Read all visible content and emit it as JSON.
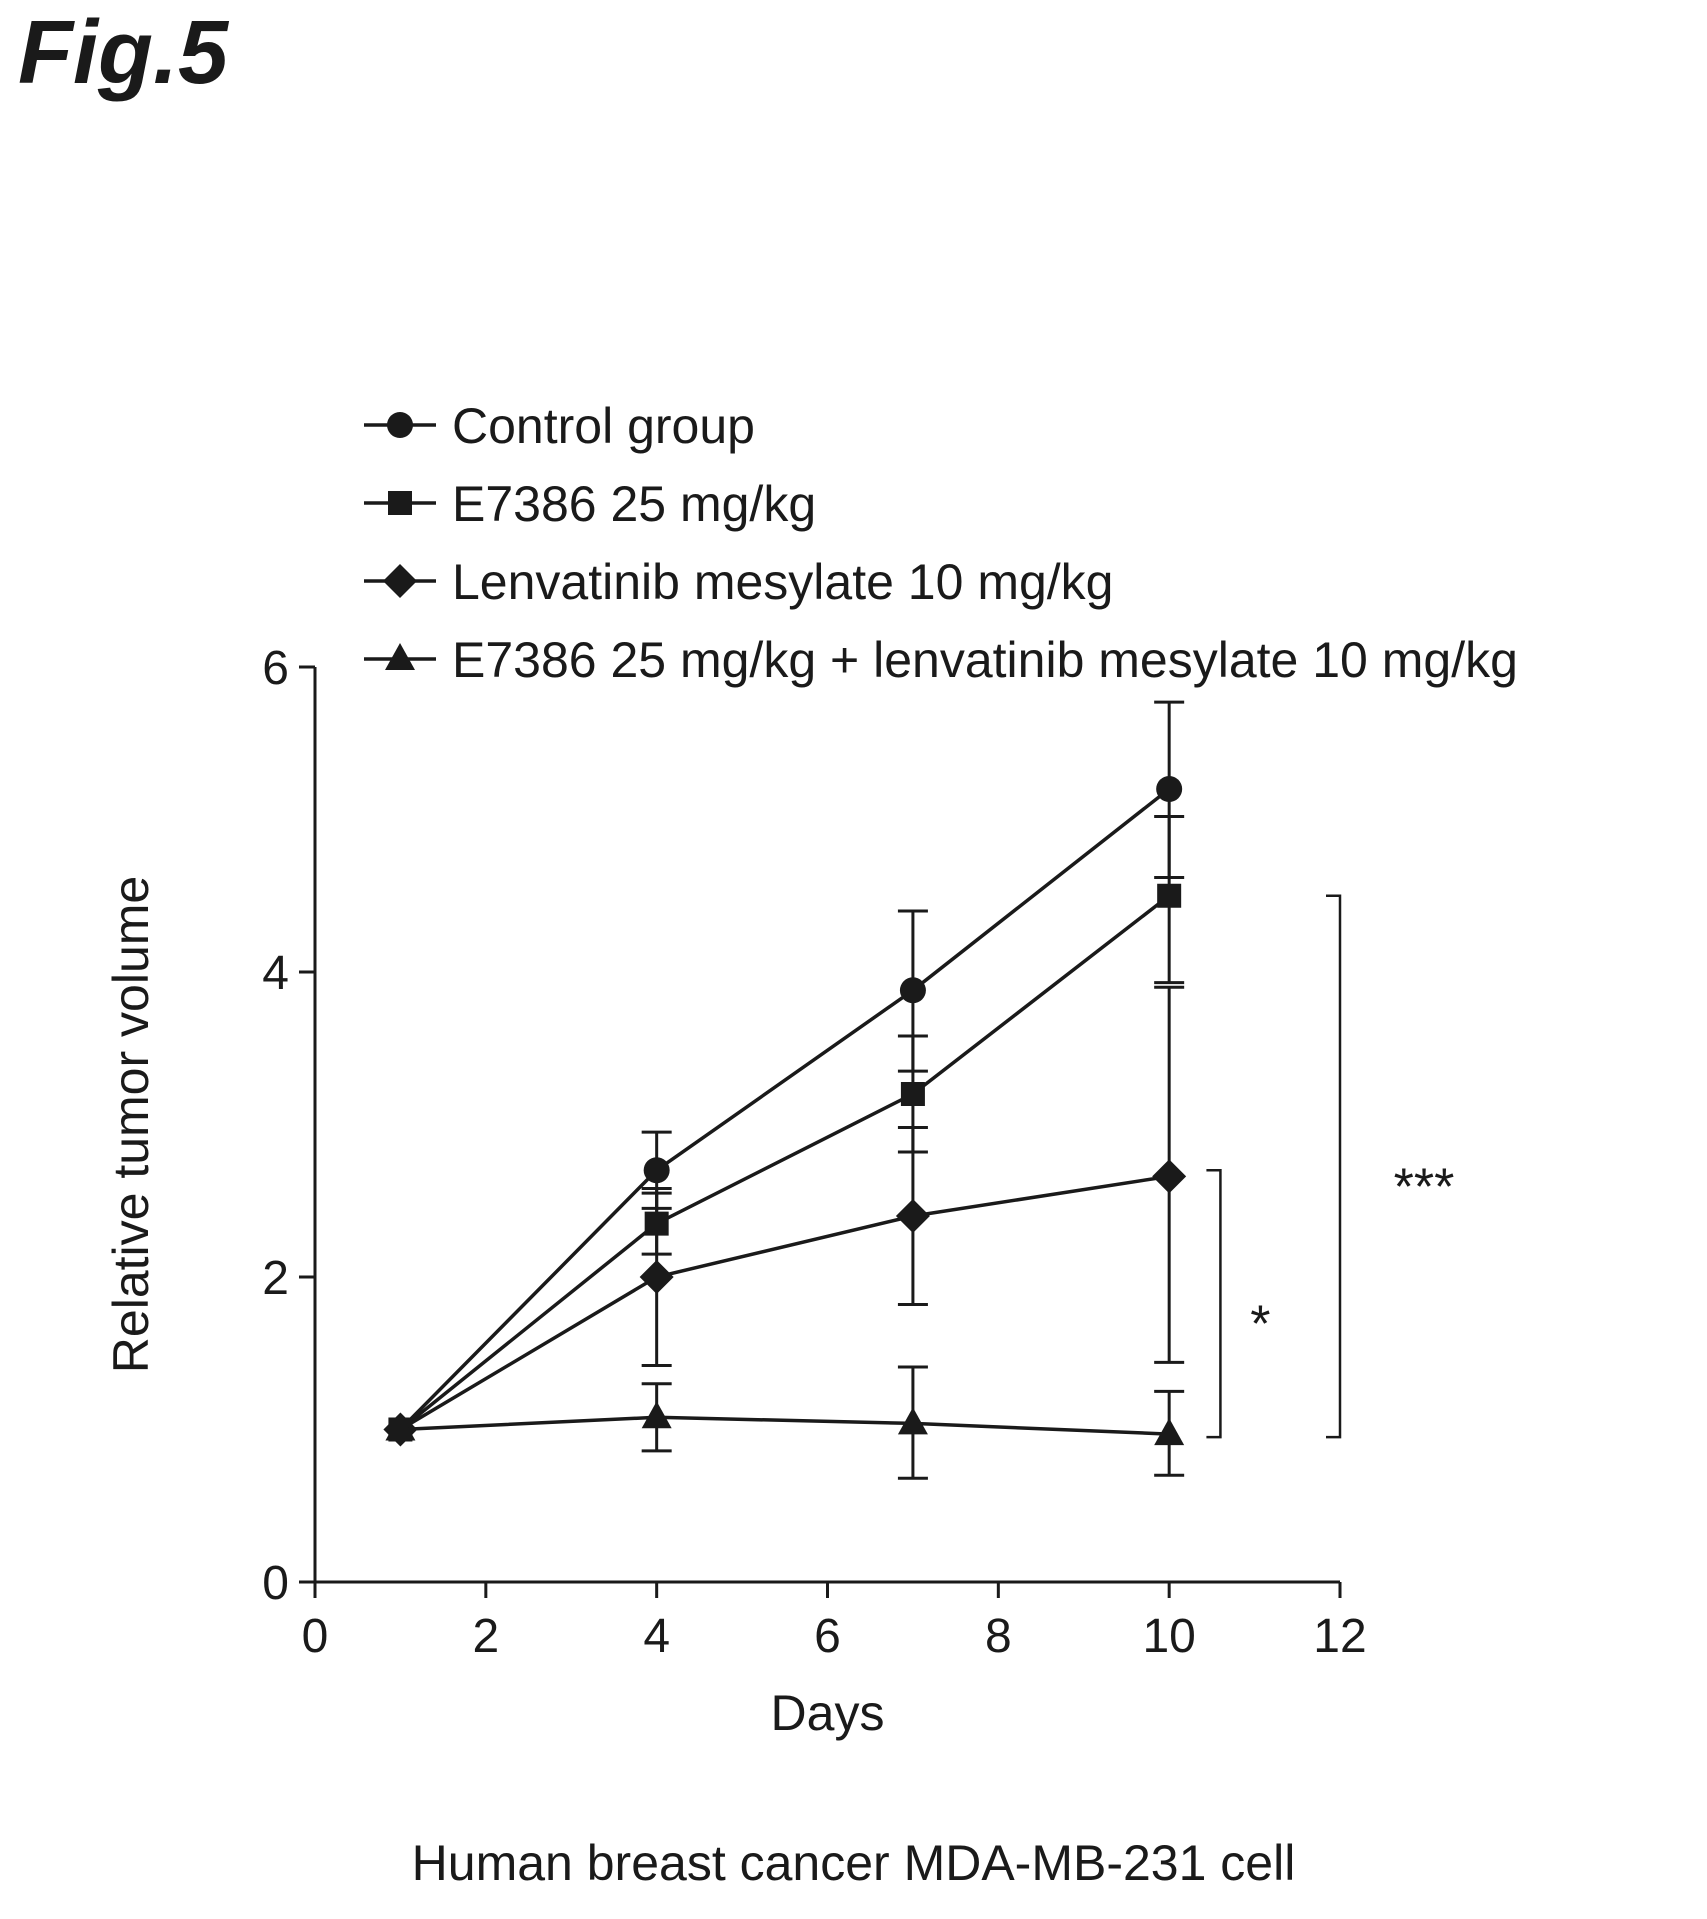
{
  "figure_label": "Fig.5",
  "caption": "Human breast cancer MDA-MB-231 cell",
  "colors": {
    "ink": "#1a1a1a",
    "background": "#ffffff"
  },
  "chart_data": {
    "type": "line",
    "title": "",
    "xlabel": "Days",
    "ylabel": "Relative tumor volume",
    "xlim": [
      0,
      12
    ],
    "ylim": [
      0,
      6
    ],
    "xticks": [
      0,
      2,
      4,
      6,
      8,
      10,
      12
    ],
    "yticks": [
      0,
      2,
      4,
      6
    ],
    "grid": false,
    "legend_position": "top",
    "x": [
      1,
      4,
      7,
      10
    ],
    "series": [
      {
        "name": "Control group",
        "marker": "circle",
        "values": [
          1.0,
          2.7,
          3.88,
          5.2
        ],
        "error_low": [
          1.0,
          2.45,
          3.35,
          4.62
        ],
        "error_high": [
          1.0,
          2.95,
          4.4,
          5.77
        ]
      },
      {
        "name": "E7386 25 mg/kg",
        "marker": "square",
        "values": [
          1.0,
          2.35,
          3.2,
          4.5
        ],
        "error_low": [
          1.0,
          2.15,
          2.82,
          3.93
        ],
        "error_high": [
          1.0,
          2.55,
          3.58,
          5.02
        ]
      },
      {
        "name": "Lenvatinib mesylate 10 mg/kg",
        "marker": "diamond",
        "values": [
          1.0,
          2.0,
          2.4,
          2.66
        ],
        "error_low": [
          1.0,
          1.42,
          1.82,
          1.44
        ],
        "error_high": [
          1.0,
          2.58,
          2.98,
          3.9
        ]
      },
      {
        "name": "E7386 25 mg/kg + lenvatinib mesylate 10 mg/kg",
        "marker": "triangle",
        "values": [
          1.0,
          1.08,
          1.04,
          0.97
        ],
        "error_low": [
          1.0,
          0.86,
          0.68,
          0.7
        ],
        "error_high": [
          1.0,
          1.3,
          1.41,
          1.25
        ]
      }
    ],
    "annotations": [
      {
        "label": "*",
        "y_top": 2.7,
        "y_bottom": 0.95,
        "x": 10.6
      },
      {
        "label": "***",
        "y_top": 4.5,
        "y_bottom": 0.95,
        "x": 12.0
      }
    ]
  }
}
